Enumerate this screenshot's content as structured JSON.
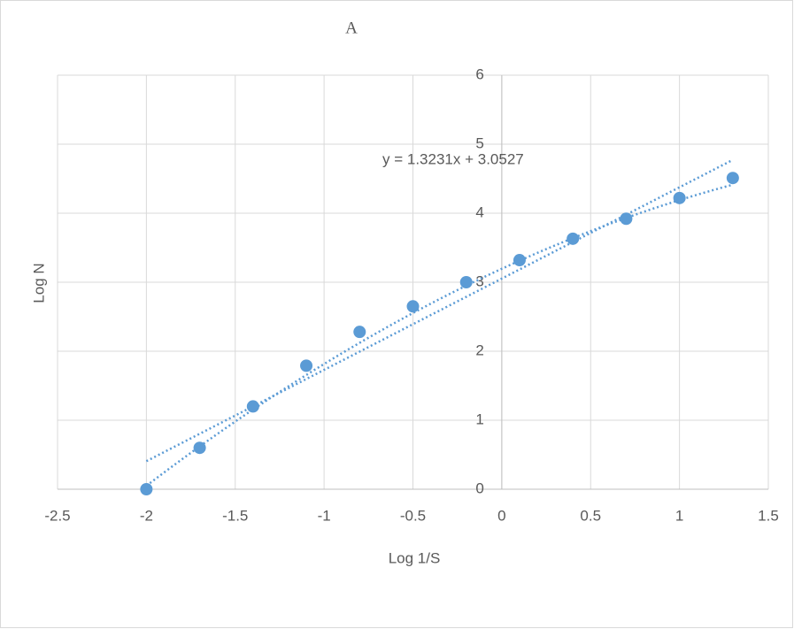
{
  "chart_data": {
    "type": "scatter",
    "title": "A",
    "x_label": "Log 1/S",
    "y_label": "Log N",
    "series": [
      {
        "name": "Log N",
        "color": "#5b9bd5",
        "x": [
          -2,
          -1.7,
          -1.4,
          -1.1,
          -0.8,
          -0.5,
          -0.2,
          0.1,
          0.4,
          0.7,
          1.0,
          1.3
        ],
        "values": [
          0,
          0.6,
          1.2,
          1.79,
          2.28,
          2.65,
          3.0,
          3.32,
          3.63,
          3.92,
          4.22,
          4.51
        ]
      }
    ],
    "trendlines": [
      {
        "type": "linear",
        "slope": 1.3231,
        "intercept": 3.0527,
        "label": "y = 1.3231x + 3.0527"
      },
      {
        "type": "polynomial",
        "coefficients": [
          3.195,
          1.1874,
          -0.1926
        ]
      }
    ],
    "xlim": [
      -2.5,
      1.5
    ],
    "xticks": [
      -2.5,
      -2,
      -1.5,
      -1,
      -0.5,
      0,
      0.5,
      1,
      1.5
    ],
    "ylim": [
      0,
      6
    ],
    "yticks": [
      0,
      1,
      2,
      3,
      4,
      5,
      6
    ],
    "grid": true
  }
}
